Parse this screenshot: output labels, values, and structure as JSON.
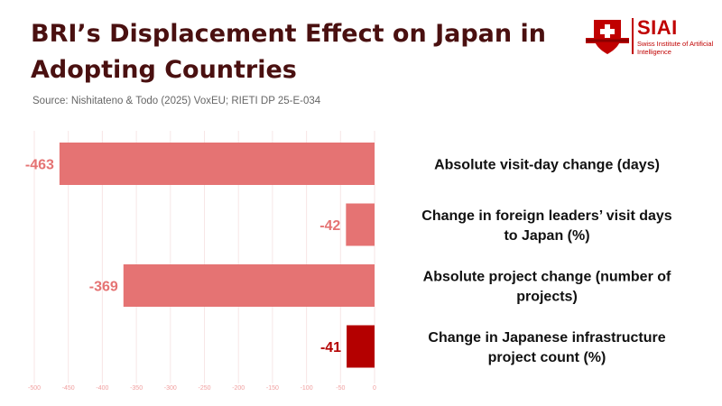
{
  "header": {
    "title": "BRI’s Displacement Effect on Japan in Adopting Countries",
    "source": "Source: Nishitateno & Todo (2025) VoxEU; RIETI DP 25-E-034"
  },
  "logo": {
    "name": "SIAI",
    "subtitle": "Swiss Institute of Artificial Intelligence",
    "icon": "swiss-shield-icon"
  },
  "colors": {
    "bar_light": "#e57373",
    "bar_highlight": "#b40000",
    "label_light": "#e57373",
    "label_highlight": "#b40000",
    "title": "#4a1010"
  },
  "chart_data": {
    "type": "bar",
    "orientation": "horizontal",
    "title": "BRI’s Displacement Effect on Japan in Adopting Countries",
    "xlabel": "",
    "ylabel": "",
    "xlim": [
      -500,
      0
    ],
    "xticks": [
      -500,
      -450,
      -400,
      -350,
      -300,
      -250,
      -200,
      -150,
      -100,
      -50,
      0
    ],
    "grid": true,
    "categories": [
      "Absolute visit-day change (days)",
      "Change in foreign leaders’ visit days to Japan (%)",
      "Absolute project change (number of projects)",
      "Change in Japanese infrastructure project count (%)"
    ],
    "values": [
      -463,
      -42,
      -369,
      -41
    ],
    "highlight_index": 3
  }
}
